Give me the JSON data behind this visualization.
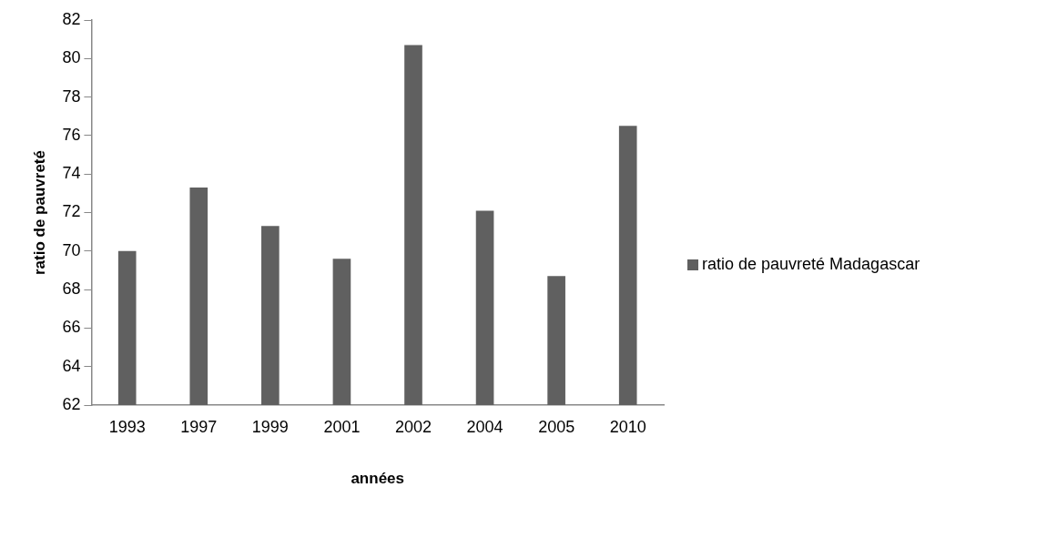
{
  "chart_data": {
    "type": "bar",
    "xlabel": "années",
    "ylabel": "ratio de pauvreté",
    "categories": [
      "1993",
      "1997",
      "1999",
      "2001",
      "2002",
      "2004",
      "2005",
      "2010"
    ],
    "series": [
      {
        "name": "ratio de pauvreté Madagascar",
        "color": "#606060",
        "values": [
          70.0,
          73.3,
          71.3,
          69.6,
          80.7,
          72.1,
          68.7,
          76.5
        ]
      }
    ],
    "ylim": [
      62,
      82
    ],
    "yticks": [
      62,
      64,
      66,
      68,
      70,
      72,
      74,
      76,
      78,
      80,
      82
    ],
    "grid": false,
    "legend": "right"
  }
}
